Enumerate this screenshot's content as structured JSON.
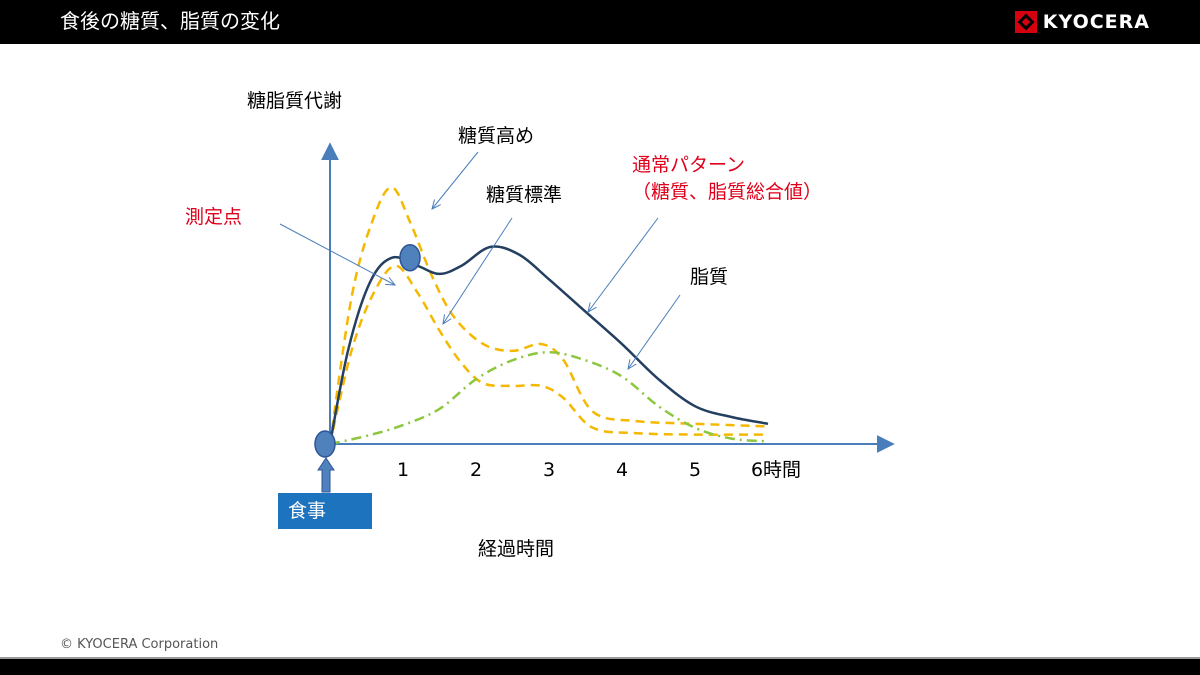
{
  "header": {
    "title": "食後の糖質、脂質の変化",
    "logo_text": "KYOCERA"
  },
  "colors": {
    "header_bg": "#000000",
    "axis": "#4a7ebb",
    "normal_pattern": "#243f60",
    "carb": "#f5b800",
    "lipid": "#8dc63f",
    "annotation_red": "#e0001b",
    "meal_box": "#1e73be",
    "logo_red": "#d7000f"
  },
  "footer": {
    "copyright": "© KYOCERA Corporation"
  },
  "chart_data": {
    "type": "line",
    "ylabel": "糖脂質代謝",
    "xlabel": "経過時間",
    "x_ticks": [
      "1",
      "2",
      "3",
      "4",
      "5",
      "6時間"
    ],
    "xlim": [
      0,
      6.3
    ],
    "ylim": [
      0,
      1
    ],
    "meal_label": "食事",
    "series": [
      {
        "key": "high_carb",
        "style": "dashed",
        "color": "#f5b800",
        "points": [
          [
            0,
            0
          ],
          [
            0.3,
            0.55
          ],
          [
            0.6,
            0.84
          ],
          [
            0.85,
            0.95
          ],
          [
            1.1,
            0.82
          ],
          [
            1.4,
            0.62
          ],
          [
            1.7,
            0.47
          ],
          [
            2.1,
            0.37
          ],
          [
            2.5,
            0.345
          ],
          [
            2.9,
            0.37
          ],
          [
            3.2,
            0.31
          ],
          [
            3.6,
            0.12
          ],
          [
            4.2,
            0.085
          ],
          [
            5,
            0.075
          ],
          [
            6,
            0.065
          ]
        ]
      },
      {
        "key": "standard_carb",
        "style": "dashed",
        "color": "#f5b800",
        "points": [
          [
            0,
            0
          ],
          [
            0.3,
            0.35
          ],
          [
            0.6,
            0.56
          ],
          [
            0.9,
            0.66
          ],
          [
            1.2,
            0.56
          ],
          [
            1.5,
            0.42
          ],
          [
            1.8,
            0.3
          ],
          [
            2.1,
            0.225
          ],
          [
            2.5,
            0.215
          ],
          [
            2.9,
            0.215
          ],
          [
            3.2,
            0.17
          ],
          [
            3.6,
            0.06
          ],
          [
            4.2,
            0.04
          ],
          [
            5,
            0.035
          ],
          [
            6,
            0.035
          ]
        ]
      },
      {
        "key": "lipid",
        "style": "dashdot",
        "color": "#8dc63f",
        "points": [
          [
            0,
            0
          ],
          [
            0.5,
            0.03
          ],
          [
            1.0,
            0.07
          ],
          [
            1.5,
            0.13
          ],
          [
            2.0,
            0.24
          ],
          [
            2.5,
            0.31
          ],
          [
            3.0,
            0.34
          ],
          [
            3.5,
            0.31
          ],
          [
            4.0,
            0.25
          ],
          [
            4.5,
            0.14
          ],
          [
            5.0,
            0.06
          ],
          [
            5.5,
            0.02
          ],
          [
            6.0,
            0.01
          ]
        ]
      },
      {
        "key": "normal_pattern",
        "style": "solid",
        "color": "#243f60",
        "points": [
          [
            0,
            0
          ],
          [
            0.25,
            0.35
          ],
          [
            0.55,
            0.6
          ],
          [
            0.85,
            0.69
          ],
          [
            1.2,
            0.66
          ],
          [
            1.5,
            0.63
          ],
          [
            1.8,
            0.66
          ],
          [
            2.2,
            0.73
          ],
          [
            2.6,
            0.7
          ],
          [
            3.0,
            0.61
          ],
          [
            3.5,
            0.49
          ],
          [
            4.0,
            0.37
          ],
          [
            4.5,
            0.24
          ],
          [
            5.0,
            0.14
          ],
          [
            5.5,
            0.1
          ],
          [
            6.0,
            0.075
          ]
        ]
      }
    ],
    "measurement_point": {
      "x": 1.0,
      "y": 0.69
    },
    "meal_point": {
      "x": 0,
      "y": 0
    },
    "annotations": [
      {
        "key": "high_carb_label",
        "text": "糖質高め",
        "target": "high_carb",
        "color": "#000000"
      },
      {
        "key": "standard_carb_label",
        "text": "糖質標準",
        "target": "standard_carb",
        "color": "#000000"
      },
      {
        "key": "normal_label",
        "text": "通常パターン",
        "text2": "（糖質、脂質総合値）",
        "target": "normal_pattern",
        "color": "#e0001b"
      },
      {
        "key": "lipid_label",
        "text": "脂質",
        "target": "lipid",
        "color": "#000000"
      },
      {
        "key": "measure_label",
        "text": "測定点",
        "target": "measurement_point",
        "color": "#e0001b"
      }
    ]
  }
}
